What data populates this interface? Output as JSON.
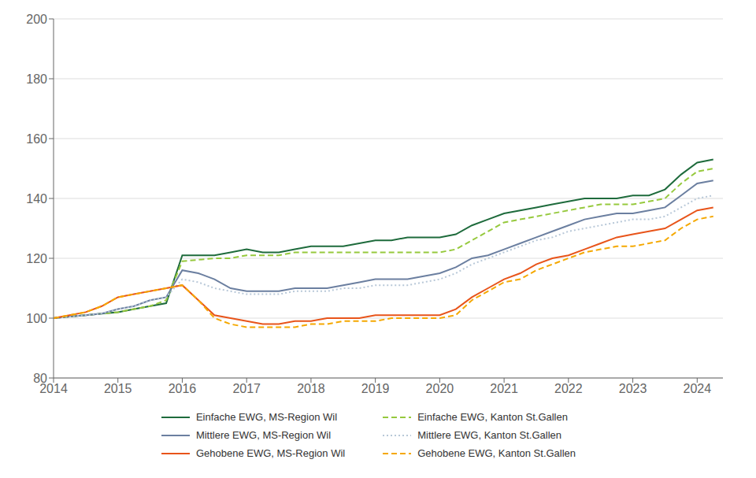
{
  "chart_data": {
    "type": "line",
    "x": [
      2014.0,
      2014.25,
      2014.5,
      2014.75,
      2015.0,
      2015.25,
      2015.5,
      2015.75,
      2016.0,
      2016.25,
      2016.5,
      2016.75,
      2017.0,
      2017.25,
      2017.5,
      2017.75,
      2018.0,
      2018.25,
      2018.5,
      2018.75,
      2019.0,
      2019.25,
      2019.5,
      2019.75,
      2020.0,
      2020.25,
      2020.5,
      2020.75,
      2021.0,
      2021.25,
      2021.5,
      2021.75,
      2022.0,
      2022.25,
      2022.5,
      2022.75,
      2023.0,
      2023.25,
      2023.5,
      2023.75,
      2024.0,
      2024.25
    ],
    "series": [
      {
        "name": "Einfache EWG, MS-Region Wil",
        "color": "#1e6b3c",
        "line_style": "solid",
        "values": [
          100,
          100.5,
          101,
          101.5,
          102,
          103,
          104,
          105,
          121,
          121,
          121,
          122,
          123,
          122,
          122,
          123,
          124,
          124,
          124,
          125,
          126,
          126,
          127,
          127,
          127,
          128,
          131,
          133,
          135,
          136,
          137,
          138,
          139,
          140,
          140,
          140,
          141,
          141,
          143,
          148,
          152,
          153
        ]
      },
      {
        "name": "Einfache EWG, Kanton St.Gallen",
        "color": "#96c93d",
        "line_style": "dashed",
        "values": [
          100,
          100.5,
          101,
          101.5,
          102,
          103,
          104,
          106,
          119,
          119.5,
          120,
          120,
          121,
          121,
          121,
          122,
          122,
          122,
          122,
          122,
          122,
          122,
          122,
          122,
          122,
          123,
          126,
          129,
          132,
          133,
          134,
          135,
          136,
          137,
          138,
          138,
          138,
          139,
          140,
          145,
          149,
          150
        ]
      },
      {
        "name": "Mittlere EWG, MS-Region Wil",
        "color": "#6b7fa0",
        "line_style": "solid",
        "values": [
          100,
          100.5,
          101,
          101.5,
          103,
          104,
          106,
          107,
          116,
          115,
          113,
          110,
          109,
          109,
          109,
          110,
          110,
          110,
          111,
          112,
          113,
          113,
          113,
          114,
          115,
          117,
          120,
          121,
          123,
          125,
          127,
          129,
          131,
          133,
          134,
          135,
          135,
          136,
          137,
          141,
          145,
          146
        ]
      },
      {
        "name": "Mittlere EWG, Kanton St.Gallen",
        "color": "#b8c8d8",
        "line_style": "dotted",
        "values": [
          100,
          100.5,
          101,
          101.5,
          103,
          104,
          106,
          107,
          113,
          112,
          110,
          109,
          108,
          108,
          108,
          109,
          109,
          109,
          110,
          110,
          111,
          111,
          111,
          112,
          113,
          115,
          118,
          120,
          122,
          124,
          126,
          127,
          129,
          130,
          131,
          132,
          133,
          133,
          134,
          137,
          140,
          141
        ]
      },
      {
        "name": "Gehobene EWG, MS-Region Wil",
        "color": "#e8541a",
        "line_style": "solid",
        "values": [
          100,
          101,
          102,
          104,
          107,
          108,
          109,
          110,
          111,
          106,
          101,
          100,
          99,
          98,
          98,
          99,
          99,
          100,
          100,
          100,
          101,
          101,
          101,
          101,
          101,
          103,
          107,
          110,
          113,
          115,
          118,
          120,
          121,
          123,
          125,
          127,
          128,
          129,
          130,
          133,
          136,
          137
        ]
      },
      {
        "name": "Gehobene EWG, Kanton St.Gallen",
        "color": "#f5a800",
        "line_style": "dashed",
        "values": [
          100,
          101,
          102,
          104,
          107,
          108,
          109,
          110,
          111,
          106,
          100,
          98,
          97,
          97,
          97,
          97,
          98,
          98,
          99,
          99,
          99,
          100,
          100,
          100,
          100,
          101,
          106,
          109,
          112,
          113,
          116,
          118,
          120,
          122,
          123,
          124,
          124,
          125,
          126,
          130,
          133,
          134
        ]
      }
    ],
    "xlim": [
      2014,
      2024.4
    ],
    "xticks": [
      2014,
      2015,
      2016,
      2017,
      2018,
      2019,
      2020,
      2021,
      2022,
      2023,
      2024
    ],
    "ylim": [
      80,
      200
    ],
    "yticks": [
      80,
      100,
      120,
      140,
      160,
      180,
      200
    ],
    "grid": "y",
    "legend": "bottom"
  }
}
